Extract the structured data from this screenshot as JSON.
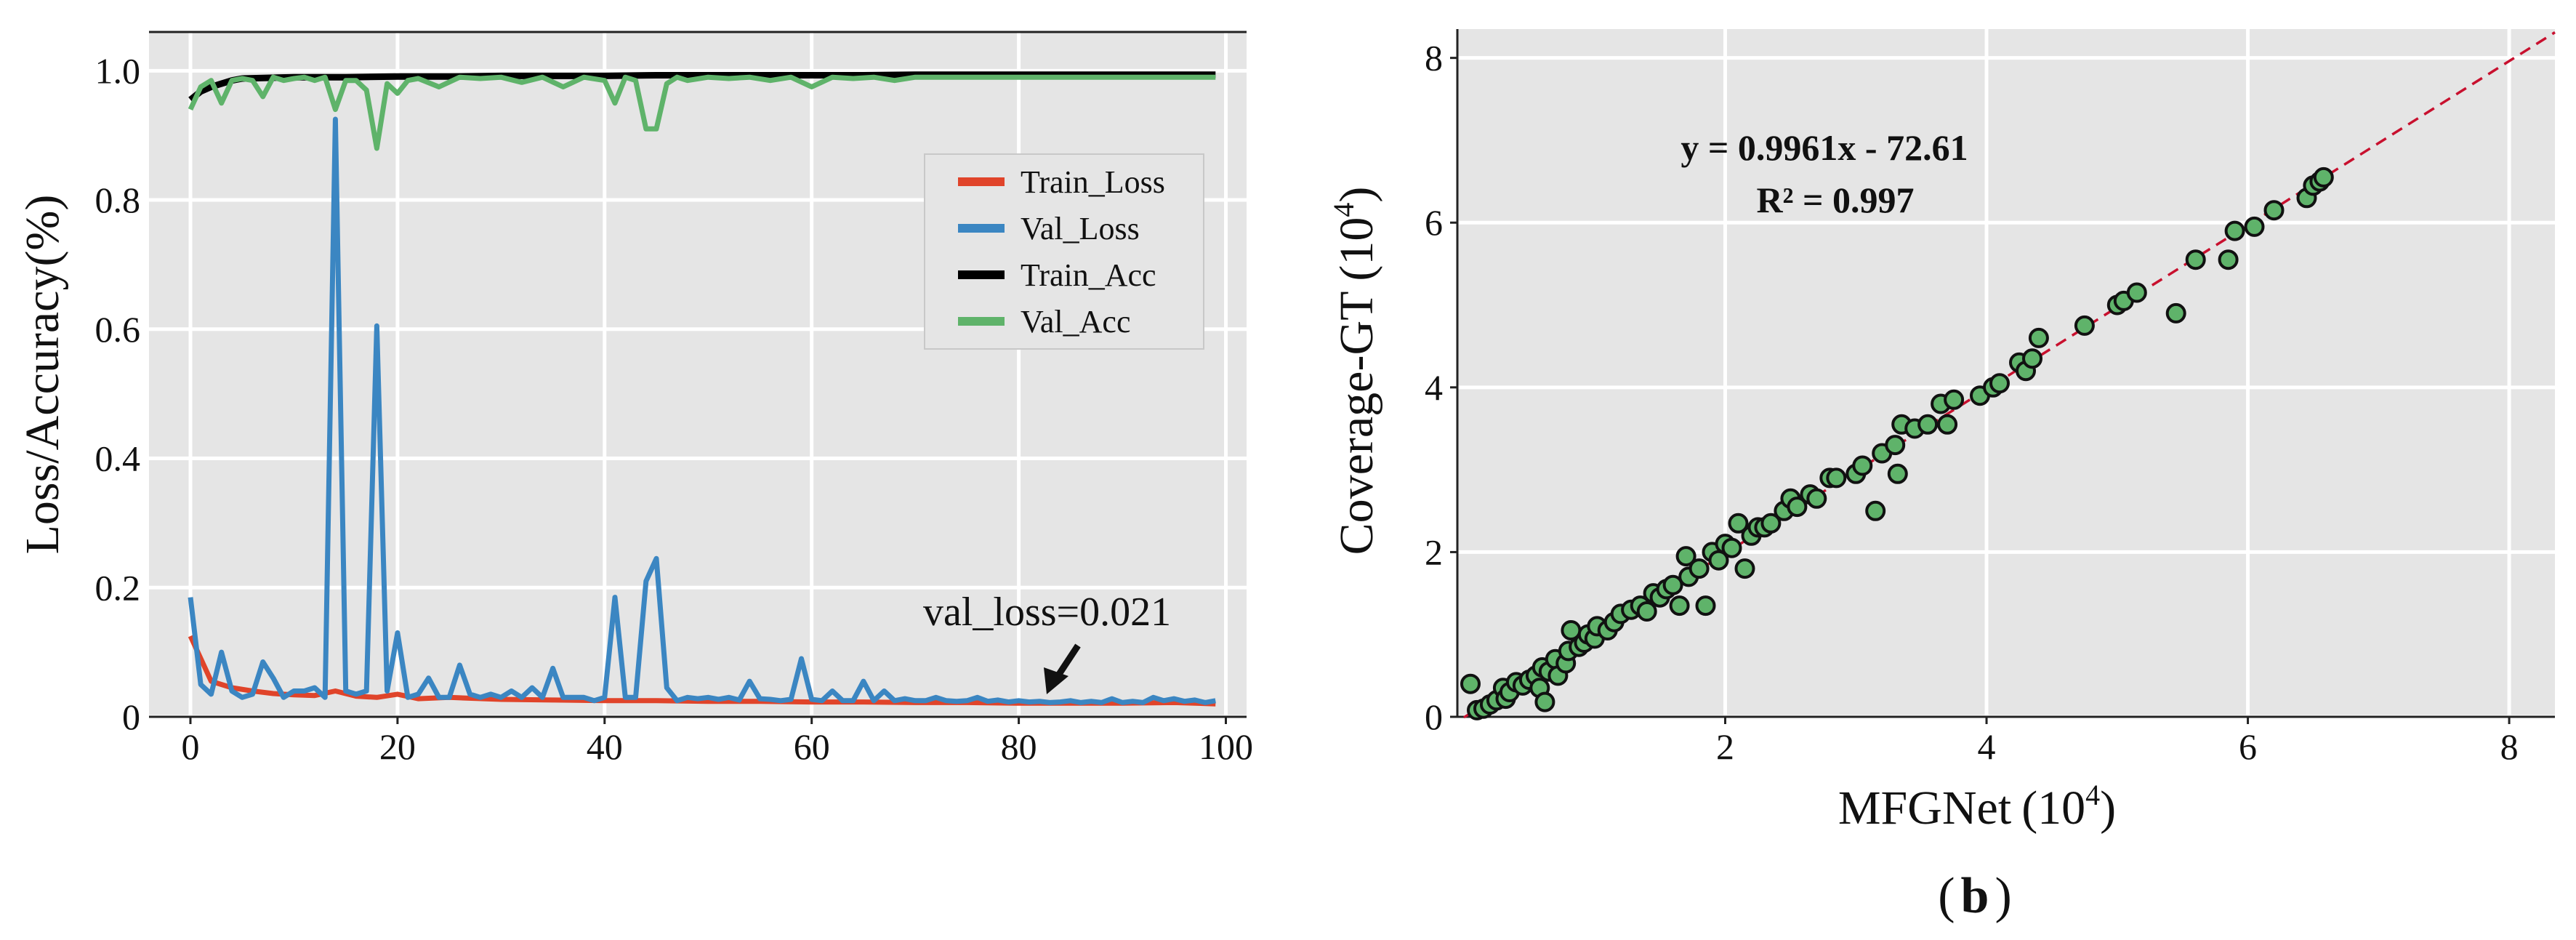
{
  "chart_data": [
    {
      "type": "line",
      "title": "",
      "xlabel": "",
      "ylabel": "Loss/Accuracy(%)",
      "xlim": [
        -4,
        102
      ],
      "ylim": [
        0,
        1.06
      ],
      "xticks": [
        "0",
        "20",
        "40",
        "60",
        "80",
        "100"
      ],
      "yticks": [
        "0",
        "0.2",
        "0.4",
        "0.6",
        "0.8",
        "1.0"
      ],
      "grid": true,
      "legend_position": "upper-right",
      "annotation": {
        "text": "val_loss=0.021",
        "x": 83,
        "y": 0.021
      },
      "series": [
        {
          "name": "Train_Loss",
          "color": "#e0442a",
          "x": [
            0,
            2,
            4,
            6,
            8,
            10,
            12,
            14,
            16,
            18,
            20,
            22,
            25,
            30,
            35,
            40,
            45,
            50,
            55,
            60,
            65,
            70,
            75,
            80,
            85,
            90,
            95,
            99
          ],
          "y": [
            0.125,
            0.055,
            0.045,
            0.04,
            0.036,
            0.034,
            0.033,
            0.04,
            0.032,
            0.03,
            0.035,
            0.028,
            0.03,
            0.027,
            0.026,
            0.025,
            0.025,
            0.024,
            0.024,
            0.023,
            0.023,
            0.022,
            0.022,
            0.021,
            0.021,
            0.021,
            0.022,
            0.02
          ]
        },
        {
          "name": "Val_Loss",
          "color": "#3b86c2",
          "x": [
            0,
            1,
            2,
            3,
            4,
            5,
            6,
            7,
            8,
            9,
            10,
            11,
            12,
            13,
            14,
            15,
            16,
            17,
            18,
            19,
            20,
            21,
            22,
            23,
            24,
            25,
            26,
            27,
            28,
            29,
            30,
            31,
            32,
            33,
            34,
            35,
            36,
            37,
            38,
            39,
            40,
            41,
            42,
            43,
            44,
            45,
            46,
            47,
            48,
            49,
            50,
            51,
            52,
            53,
            54,
            55,
            56,
            57,
            58,
            59,
            60,
            61,
            62,
            63,
            64,
            65,
            66,
            67,
            68,
            69,
            70,
            71,
            72,
            73,
            74,
            75,
            76,
            77,
            78,
            79,
            80,
            81,
            82,
            83,
            84,
            85,
            86,
            87,
            88,
            89,
            90,
            91,
            92,
            93,
            94,
            95,
            96,
            97,
            98,
            99
          ],
          "y": [
            0.185,
            0.05,
            0.035,
            0.1,
            0.04,
            0.03,
            0.035,
            0.085,
            0.06,
            0.03,
            0.04,
            0.04,
            0.045,
            0.03,
            0.925,
            0.04,
            0.035,
            0.04,
            0.605,
            0.04,
            0.13,
            0.03,
            0.035,
            0.06,
            0.03,
            0.03,
            0.08,
            0.035,
            0.03,
            0.035,
            0.03,
            0.04,
            0.03,
            0.045,
            0.03,
            0.075,
            0.03,
            0.03,
            0.03,
            0.025,
            0.03,
            0.185,
            0.03,
            0.03,
            0.21,
            0.245,
            0.045,
            0.025,
            0.03,
            0.028,
            0.03,
            0.027,
            0.03,
            0.026,
            0.055,
            0.028,
            0.027,
            0.025,
            0.027,
            0.09,
            0.027,
            0.025,
            0.04,
            0.025,
            0.025,
            0.055,
            0.025,
            0.04,
            0.025,
            0.028,
            0.025,
            0.025,
            0.03,
            0.025,
            0.024,
            0.025,
            0.03,
            0.024,
            0.026,
            0.023,
            0.025,
            0.023,
            0.024,
            0.022,
            0.023,
            0.025,
            0.022,
            0.024,
            0.022,
            0.028,
            0.022,
            0.024,
            0.022,
            0.03,
            0.025,
            0.028,
            0.024,
            0.026,
            0.022,
            0.025
          ]
        },
        {
          "name": "Train_Acc",
          "color": "#000000",
          "x": [
            0,
            1,
            2,
            3,
            4,
            5,
            10,
            15,
            20,
            25,
            30,
            35,
            40,
            45,
            50,
            55,
            60,
            65,
            70,
            75,
            80,
            85,
            90,
            95,
            99
          ],
          "y": [
            0.955,
            0.968,
            0.975,
            0.98,
            0.985,
            0.988,
            0.99,
            0.99,
            0.991,
            0.991,
            0.992,
            0.992,
            0.992,
            0.993,
            0.993,
            0.993,
            0.993,
            0.993,
            0.994,
            0.994,
            0.994,
            0.994,
            0.994,
            0.994,
            0.994
          ]
        },
        {
          "name": "Val_Acc",
          "color": "#5fb36a",
          "x": [
            0,
            1,
            2,
            3,
            4,
            5,
            6,
            7,
            8,
            9,
            10,
            11,
            12,
            13,
            14,
            15,
            16,
            17,
            18,
            19,
            20,
            21,
            22,
            24,
            26,
            28,
            30,
            32,
            34,
            36,
            38,
            40,
            41,
            42,
            43,
            44,
            45,
            46,
            47,
            48,
            50,
            52,
            54,
            56,
            58,
            60,
            62,
            64,
            66,
            68,
            70,
            75,
            80,
            85,
            90,
            95,
            99
          ],
          "y": [
            0.94,
            0.975,
            0.985,
            0.95,
            0.985,
            0.988,
            0.985,
            0.96,
            0.99,
            0.985,
            0.988,
            0.99,
            0.985,
            0.99,
            0.94,
            0.985,
            0.985,
            0.97,
            0.88,
            0.98,
            0.965,
            0.985,
            0.988,
            0.975,
            0.99,
            0.988,
            0.99,
            0.982,
            0.99,
            0.975,
            0.99,
            0.985,
            0.95,
            0.99,
            0.985,
            0.91,
            0.91,
            0.98,
            0.99,
            0.985,
            0.99,
            0.988,
            0.99,
            0.985,
            0.99,
            0.975,
            0.99,
            0.988,
            0.99,
            0.985,
            0.99,
            0.99,
            0.99,
            0.99,
            0.99,
            0.99,
            0.99
          ]
        }
      ]
    },
    {
      "type": "scatter",
      "title": "",
      "xlabel": "MFGNet",
      "xlabel_unit": "(10",
      "xlabel_exp": "4",
      "xlabel_close": ")",
      "ylabel": "Coverage-GT",
      "ylabel_unit": "(10",
      "ylabel_exp": "4",
      "ylabel_close": ")",
      "xlim": [
        -0.05,
        8.35
      ],
      "ylim": [
        0,
        8.35
      ],
      "xticks": [
        "2",
        "4",
        "6",
        "8"
      ],
      "yticks": [
        "0",
        "2",
        "4",
        "6",
        "8"
      ],
      "grid": true,
      "equation": "y = 0.9961x - 72.61",
      "r2": "R² = 0.997",
      "fit_line": {
        "slope": 0.9961,
        "intercept": -0.007261,
        "color": "#c8102e",
        "style": "dashed"
      },
      "marker_color": "#5fb36a",
      "points": [
        [
          0.05,
          0.4
        ],
        [
          0.1,
          0.08
        ],
        [
          0.15,
          0.1
        ],
        [
          0.2,
          0.15
        ],
        [
          0.25,
          0.2
        ],
        [
          0.3,
          0.35
        ],
        [
          0.32,
          0.22
        ],
        [
          0.35,
          0.3
        ],
        [
          0.4,
          0.42
        ],
        [
          0.45,
          0.38
        ],
        [
          0.5,
          0.45
        ],
        [
          0.55,
          0.5
        ],
        [
          0.58,
          0.35
        ],
        [
          0.6,
          0.6
        ],
        [
          0.62,
          0.18
        ],
        [
          0.65,
          0.55
        ],
        [
          0.7,
          0.7
        ],
        [
          0.72,
          0.5
        ],
        [
          0.78,
          0.65
        ],
        [
          0.8,
          0.8
        ],
        [
          0.82,
          1.05
        ],
        [
          0.88,
          0.85
        ],
        [
          0.92,
          0.9
        ],
        [
          0.95,
          1.0
        ],
        [
          1.0,
          0.95
        ],
        [
          1.02,
          1.1
        ],
        [
          1.1,
          1.05
        ],
        [
          1.15,
          1.15
        ],
        [
          1.2,
          1.25
        ],
        [
          1.28,
          1.3
        ],
        [
          1.35,
          1.35
        ],
        [
          1.4,
          1.28
        ],
        [
          1.45,
          1.5
        ],
        [
          1.5,
          1.45
        ],
        [
          1.55,
          1.55
        ],
        [
          1.6,
          1.6
        ],
        [
          1.65,
          1.35
        ],
        [
          1.7,
          1.95
        ],
        [
          1.72,
          1.7
        ],
        [
          1.8,
          1.8
        ],
        [
          1.85,
          1.35
        ],
        [
          1.9,
          2.0
        ],
        [
          1.95,
          1.9
        ],
        [
          2.0,
          2.1
        ],
        [
          2.05,
          2.05
        ],
        [
          2.1,
          2.35
        ],
        [
          2.15,
          1.8
        ],
        [
          2.2,
          2.2
        ],
        [
          2.25,
          2.3
        ],
        [
          2.3,
          2.3
        ],
        [
          2.35,
          2.35
        ],
        [
          2.45,
          2.5
        ],
        [
          2.5,
          2.65
        ],
        [
          2.55,
          2.55
        ],
        [
          2.65,
          2.7
        ],
        [
          2.7,
          2.65
        ],
        [
          2.8,
          2.9
        ],
        [
          2.85,
          2.9
        ],
        [
          3.0,
          2.95
        ],
        [
          3.05,
          3.05
        ],
        [
          3.15,
          2.5
        ],
        [
          3.2,
          3.2
        ],
        [
          3.3,
          3.3
        ],
        [
          3.32,
          2.95
        ],
        [
          3.35,
          3.55
        ],
        [
          3.45,
          3.5
        ],
        [
          3.55,
          3.55
        ],
        [
          3.65,
          3.8
        ],
        [
          3.7,
          3.55
        ],
        [
          3.75,
          3.85
        ],
        [
          3.95,
          3.9
        ],
        [
          4.05,
          4.0
        ],
        [
          4.1,
          4.05
        ],
        [
          4.25,
          4.3
        ],
        [
          4.3,
          4.2
        ],
        [
          4.35,
          4.35
        ],
        [
          4.4,
          4.6
        ],
        [
          4.75,
          4.75
        ],
        [
          5.0,
          5.0
        ],
        [
          5.05,
          5.05
        ],
        [
          5.15,
          5.15
        ],
        [
          5.45,
          4.9
        ],
        [
          5.6,
          5.55
        ],
        [
          5.85,
          5.55
        ],
        [
          5.9,
          5.9
        ],
        [
          6.05,
          5.95
        ],
        [
          6.2,
          6.15
        ],
        [
          6.45,
          6.3
        ],
        [
          6.5,
          6.45
        ],
        [
          6.55,
          6.5
        ],
        [
          6.58,
          6.55
        ]
      ]
    }
  ],
  "caption": {
    "open": "(",
    "letter": "b",
    "close": ")"
  }
}
